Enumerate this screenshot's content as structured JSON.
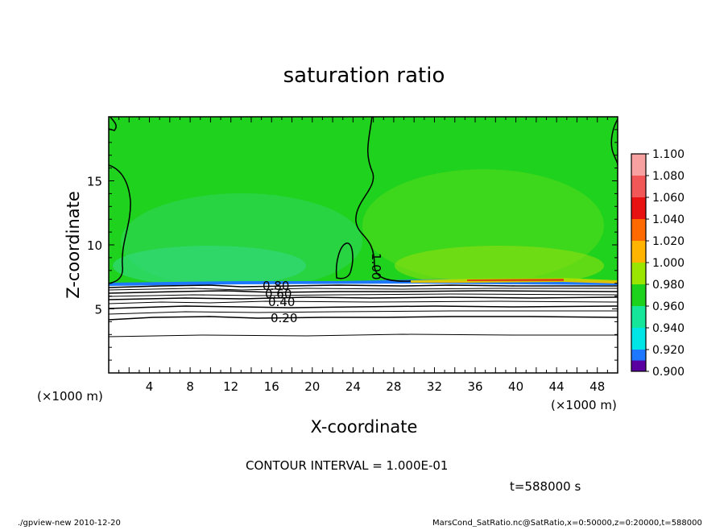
{
  "chart_data": {
    "type": "heatmap",
    "title": "saturation ratio",
    "xlabel": "X-coordinate",
    "ylabel": "Z-coordinate",
    "x_unit": "(×1000 m)",
    "y_unit": "(×1000 m)",
    "xlim": [
      0,
      50
    ],
    "ylim": [
      0,
      20
    ],
    "x_ticks": [
      4,
      8,
      12,
      16,
      20,
      24,
      28,
      32,
      36,
      40,
      44,
      48
    ],
    "y_ticks": [
      5,
      10,
      15
    ],
    "colorbar": {
      "levels": [
        {
          "value": "1.100",
          "color": "#f7a1a1"
        },
        {
          "value": "1.080",
          "color": "#f25757"
        },
        {
          "value": "1.060",
          "color": "#e81212"
        },
        {
          "value": "1.040",
          "color": "#ff6a00"
        },
        {
          "value": "1.020",
          "color": "#ffb400"
        },
        {
          "value": "1.000",
          "color": "#9ae600"
        },
        {
          "value": "0.980",
          "color": "#1dd21d"
        },
        {
          "value": "0.960",
          "color": "#16e69a"
        },
        {
          "value": "0.940",
          "color": "#00e6e6"
        },
        {
          "value": "0.920",
          "color": "#1e78ff"
        },
        {
          "value": "0.900",
          "color": "#0000d2"
        }
      ],
      "bottom_color": "#5a00a0"
    },
    "contour_labels": [
      "1.00",
      "0.80",
      "0.60",
      "0.40",
      "0.20"
    ],
    "contour_interval": "CONTOUR INTERVAL = 1.000E-01",
    "time": "t=588000 s"
  },
  "footer": {
    "left": "./gpview-new   2010-12-20",
    "right": "MarsCond_SatRatio.nc@SatRatio,x=0:50000,z=0:20000,t=588000"
  }
}
